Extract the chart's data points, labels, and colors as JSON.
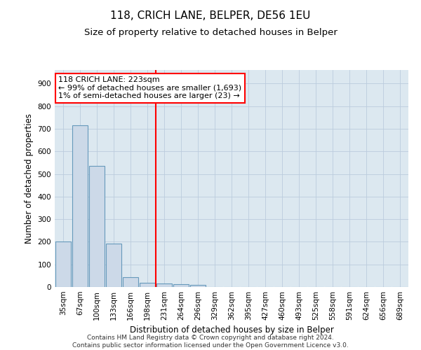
{
  "title": "118, CRICH LANE, BELPER, DE56 1EU",
  "subtitle": "Size of property relative to detached houses in Belper",
  "xlabel": "Distribution of detached houses by size in Belper",
  "ylabel": "Number of detached properties",
  "bar_labels": [
    "35sqm",
    "67sqm",
    "100sqm",
    "133sqm",
    "166sqm",
    "198sqm",
    "231sqm",
    "264sqm",
    "296sqm",
    "329sqm",
    "362sqm",
    "395sqm",
    "427sqm",
    "460sqm",
    "493sqm",
    "525sqm",
    "558sqm",
    "591sqm",
    "624sqm",
    "656sqm",
    "689sqm"
  ],
  "bar_values": [
    200,
    715,
    535,
    193,
    42,
    20,
    14,
    12,
    10,
    0,
    0,
    0,
    0,
    0,
    0,
    0,
    0,
    0,
    0,
    0,
    0
  ],
  "bar_color": "#ccd9e8",
  "bar_edge_color": "#6699bb",
  "red_line_index": 6,
  "annotation_lines": [
    "118 CRICH LANE: 223sqm",
    "← 99% of detached houses are smaller (1,693)",
    "1% of semi-detached houses are larger (23) →"
  ],
  "ylim": [
    0,
    960
  ],
  "yticks": [
    0,
    100,
    200,
    300,
    400,
    500,
    600,
    700,
    800,
    900
  ],
  "footer_line1": "Contains HM Land Registry data © Crown copyright and database right 2024.",
  "footer_line2": "Contains public sector information licensed under the Open Government Licence v3.0.",
  "plot_bg_color": "#dce8f0",
  "background_color": "#ffffff",
  "grid_color": "#bbccdd",
  "title_fontsize": 11,
  "subtitle_fontsize": 9.5,
  "axis_label_fontsize": 8.5,
  "tick_fontsize": 7.5,
  "annotation_fontsize": 8,
  "footer_fontsize": 6.5
}
